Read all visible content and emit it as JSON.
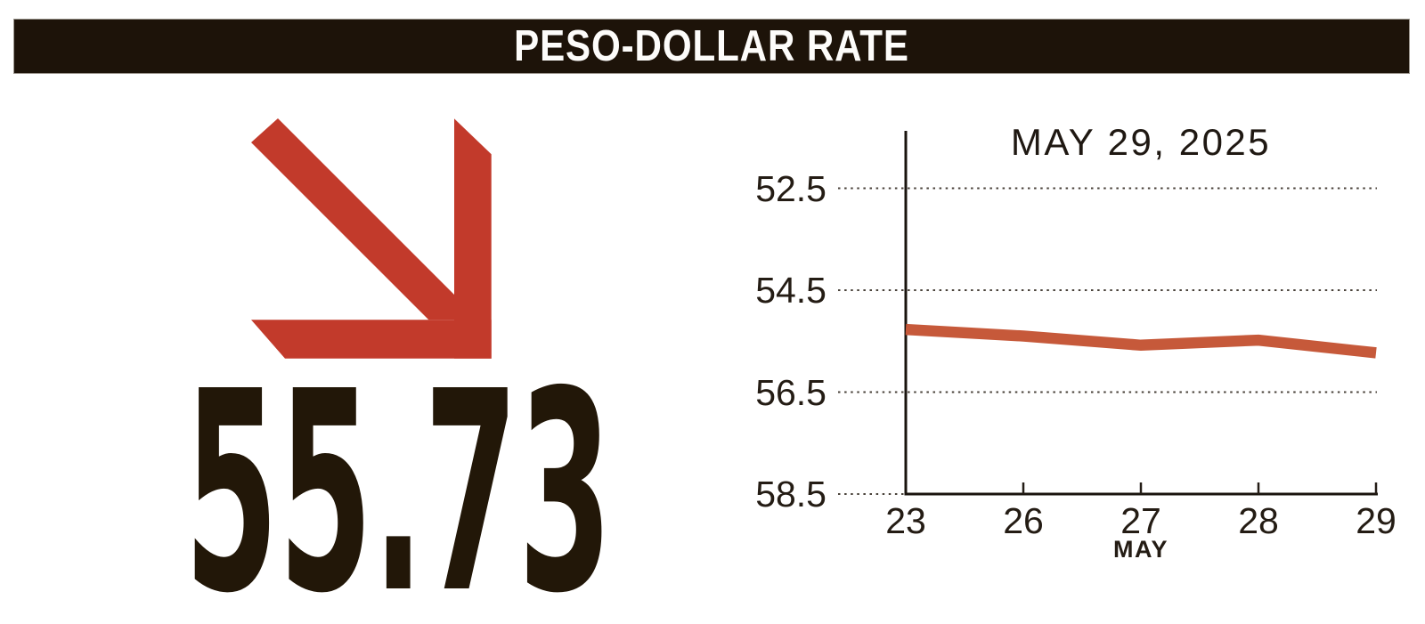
{
  "header": {
    "title": "PESO-DOLLAR RATE"
  },
  "headline": {
    "value": "55.73",
    "direction": "down"
  },
  "colors": {
    "header_bg": "#1d1309",
    "arrow_red": "#c23a2b",
    "line_red": "#c6593a",
    "text_dark": "#241c14",
    "number_dark": "#221708"
  },
  "chart_data": {
    "type": "line",
    "title": "MAY 29, 2025",
    "xlabel": "MAY",
    "x_tick_labels": [
      "23",
      "26",
      "27",
      "28",
      "29"
    ],
    "y_ticks": [
      52.5,
      54.5,
      56.5,
      58.5
    ],
    "y_axis_inverted": true,
    "ylim": [
      51.4,
      58.5
    ],
    "grid": "dotted-horizontal",
    "legend": "none",
    "series": [
      {
        "name": "peso-dollar rate",
        "values": [
          55.27,
          55.4,
          55.58,
          55.48,
          55.73
        ]
      }
    ],
    "line_color": "#c6593a"
  }
}
